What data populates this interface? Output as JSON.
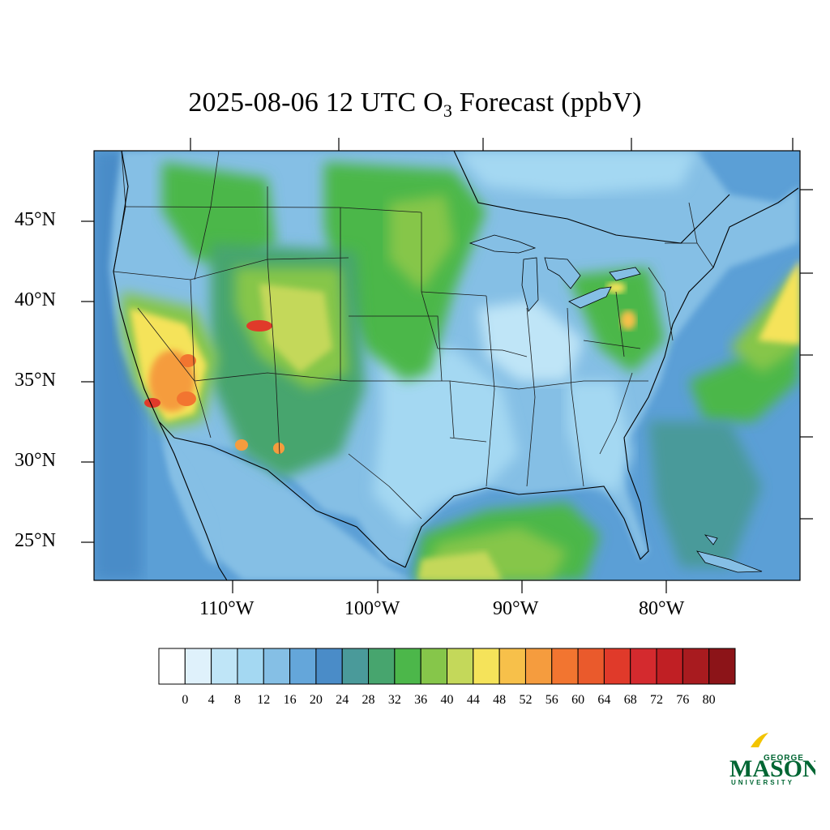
{
  "title": {
    "main": "2025-08-06 12 UTC O",
    "sub": "3",
    "tail": " Forecast (ppbV)"
  },
  "lat_labels": [
    "45°N",
    "40°N",
    "35°N",
    "30°N",
    "25°N"
  ],
  "lon_labels": [
    "110°W",
    "100°W",
    "90°W",
    "80°W"
  ],
  "colorbar": {
    "levels": [
      "0",
      "4",
      "8",
      "12",
      "16",
      "20",
      "24",
      "28",
      "32",
      "36",
      "40",
      "44",
      "48",
      "52",
      "56",
      "60",
      "64",
      "68",
      "72",
      "76",
      "80"
    ],
    "colors": [
      "#ffffff",
      "#dff1fb",
      "#bfe5f7",
      "#a4d8f2",
      "#85bfe5",
      "#64a6da",
      "#4a8cc8",
      "#4a9a9a",
      "#47a56e",
      "#4cb74a",
      "#86c64a",
      "#c4d85a",
      "#f5e35a",
      "#f7c04a",
      "#f59c3e",
      "#f27530",
      "#ea5a2c",
      "#e03a2a",
      "#d42a2e",
      "#c01f24",
      "#a81b1f",
      "#8c1418"
    ]
  },
  "logo": {
    "top": "GEORGE",
    "main": "MASON",
    "bottom": "UNIVERSITY",
    "color": "#006633",
    "accent": "#f2c400"
  },
  "map_colors": {
    "ocean": "#5b9fd6",
    "ocean_deep": "#4a8cc8",
    "land_low": "#a4d8f2",
    "land_mid": "#85bfe5",
    "green": "#4cb74a",
    "yellow": "#f5e35a",
    "orange": "#f59c3e",
    "red": "#e03a2a"
  }
}
